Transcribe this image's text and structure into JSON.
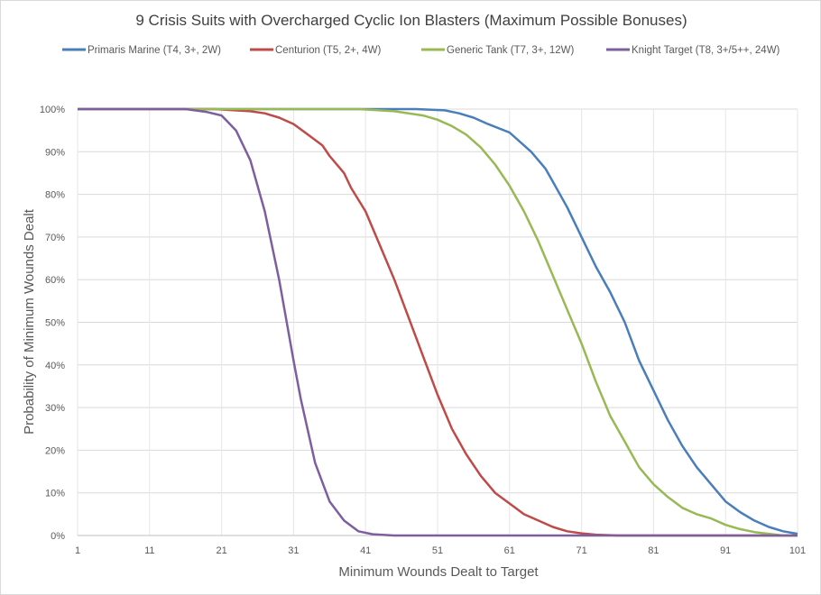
{
  "chart_data": {
    "type": "line",
    "title": "9 Crisis Suits with Overcharged Cyclic Ion Blasters (Maximum Possible Bonuses)",
    "xlabel": "Minimum Wounds Dealt  to Target",
    "ylabel": "Probability of Minimum Wounds Dealt",
    "xlim": [
      1,
      101
    ],
    "ylim": [
      0,
      100
    ],
    "x_ticks": [
      "1",
      "11",
      "21",
      "31",
      "41",
      "51",
      "61",
      "71",
      "81",
      "91",
      "101"
    ],
    "y_ticks": [
      "0%",
      "10%",
      "20%",
      "30%",
      "40%",
      "50%",
      "60%",
      "70%",
      "80%",
      "90%",
      "100%"
    ],
    "grid": true,
    "legend_position": "top",
    "series": [
      {
        "name": "Primaris Marine (T4, 3+, 2W)",
        "color": "#4a7ebb",
        "points": [
          [
            1,
            100
          ],
          [
            48,
            100
          ],
          [
            52,
            99.7
          ],
          [
            54,
            99
          ],
          [
            56,
            98
          ],
          [
            58,
            96.5
          ],
          [
            61,
            94.5
          ],
          [
            64,
            90
          ],
          [
            66,
            86
          ],
          [
            67,
            83
          ],
          [
            69,
            77
          ],
          [
            71,
            70
          ],
          [
            73,
            63
          ],
          [
            75,
            57
          ],
          [
            77,
            50
          ],
          [
            79,
            41
          ],
          [
            81,
            34
          ],
          [
            83,
            27
          ],
          [
            85,
            21
          ],
          [
            87,
            16
          ],
          [
            89,
            12
          ],
          [
            91,
            8
          ],
          [
            93,
            5.5
          ],
          [
            95,
            3.5
          ],
          [
            97,
            2
          ],
          [
            99,
            1
          ],
          [
            101,
            0.4
          ]
        ]
      },
      {
        "name": "Centurion (T5, 2+, 4W)",
        "color": "#be4b48",
        "points": [
          [
            1,
            100
          ],
          [
            20,
            100
          ],
          [
            25,
            99.5
          ],
          [
            27,
            99
          ],
          [
            29,
            98
          ],
          [
            31,
            96.5
          ],
          [
            33,
            94
          ],
          [
            35,
            91.5
          ],
          [
            36,
            89
          ],
          [
            38,
            85
          ],
          [
            39,
            81.5
          ],
          [
            41,
            76
          ],
          [
            43,
            68
          ],
          [
            45,
            60
          ],
          [
            47,
            51
          ],
          [
            49,
            42
          ],
          [
            51,
            33
          ],
          [
            53,
            25
          ],
          [
            55,
            19
          ],
          [
            57,
            14
          ],
          [
            59,
            10
          ],
          [
            61,
            7.5
          ],
          [
            63,
            5
          ],
          [
            65,
            3.5
          ],
          [
            67,
            2
          ],
          [
            69,
            1
          ],
          [
            71,
            0.5
          ],
          [
            73,
            0.2
          ],
          [
            76,
            0
          ],
          [
            101,
            0
          ]
        ]
      },
      {
        "name": "Generic Tank (T7, 3+, 12W)",
        "color": "#98b954",
        "points": [
          [
            1,
            100
          ],
          [
            40,
            100
          ],
          [
            45,
            99.5
          ],
          [
            49,
            98.5
          ],
          [
            51,
            97.5
          ],
          [
            53,
            96
          ],
          [
            55,
            94
          ],
          [
            57,
            91
          ],
          [
            59,
            87
          ],
          [
            61,
            82
          ],
          [
            63,
            76
          ],
          [
            65,
            69
          ],
          [
            67,
            61
          ],
          [
            69,
            53
          ],
          [
            71,
            45
          ],
          [
            73,
            36
          ],
          [
            75,
            28
          ],
          [
            77,
            22
          ],
          [
            79,
            16
          ],
          [
            81,
            12
          ],
          [
            83,
            9
          ],
          [
            85,
            6.5
          ],
          [
            87,
            5
          ],
          [
            89,
            4
          ],
          [
            91,
            2.5
          ],
          [
            93,
            1.5
          ],
          [
            95,
            0.8
          ],
          [
            97,
            0.4
          ],
          [
            99,
            0
          ],
          [
            101,
            0
          ]
        ]
      },
      {
        "name": "Knight Target (T8, 3+/5++, 24W)",
        "color": "#7d5fa0",
        "points": [
          [
            1,
            100
          ],
          [
            16,
            100
          ],
          [
            19,
            99.3
          ],
          [
            21,
            98.5
          ],
          [
            23,
            95
          ],
          [
            25,
            88
          ],
          [
            27,
            76
          ],
          [
            29,
            60
          ],
          [
            31,
            41
          ],
          [
            32,
            32
          ],
          [
            34,
            17
          ],
          [
            36,
            8
          ],
          [
            38,
            3.5
          ],
          [
            40,
            1
          ],
          [
            42,
            0.3
          ],
          [
            45,
            0
          ],
          [
            101,
            0
          ]
        ]
      }
    ]
  }
}
